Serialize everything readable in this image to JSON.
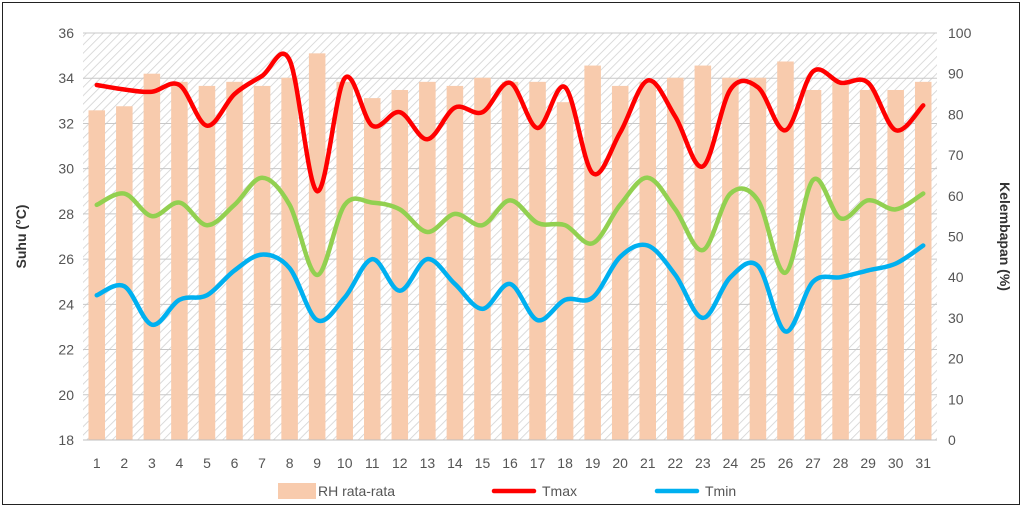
{
  "chart_data": {
    "type": "bar+line",
    "x": [
      1,
      2,
      3,
      4,
      5,
      6,
      7,
      8,
      9,
      10,
      11,
      12,
      13,
      14,
      15,
      16,
      17,
      18,
      19,
      20,
      21,
      22,
      23,
      24,
      25,
      26,
      27,
      28,
      29,
      30,
      31
    ],
    "ylabel_left": "Suhu (°C)",
    "ylabel_right": "Kelembapan (%)",
    "ylim_left": [
      18,
      36
    ],
    "yticks_left": [
      18,
      20,
      22,
      24,
      26,
      28,
      30,
      32,
      34,
      36
    ],
    "ylim_right": [
      0,
      100
    ],
    "yticks_right": [
      0,
      10,
      20,
      30,
      40,
      50,
      60,
      70,
      80,
      90,
      100
    ],
    "bar_series": {
      "name": "RH rata-rata",
      "color": "#f8cbad",
      "axis": "right",
      "values": [
        81,
        82,
        90,
        88,
        87,
        88,
        87,
        89,
        95,
        88,
        84,
        86,
        88,
        87,
        89,
        88,
        88,
        83,
        92,
        87,
        88,
        89,
        92,
        89,
        89,
        93,
        86,
        88,
        86,
        86,
        88
      ]
    },
    "line_series": [
      {
        "name": "Tmax",
        "color": "#ff0000",
        "axis": "left",
        "values": [
          33.7,
          33.5,
          33.4,
          33.7,
          31.9,
          33.3,
          34.1,
          34.8,
          29.0,
          34.0,
          31.9,
          32.5,
          31.3,
          32.7,
          32.5,
          33.8,
          31.8,
          33.6,
          29.8,
          31.6,
          33.9,
          32.3,
          30.1,
          33.5,
          33.6,
          31.7,
          34.3,
          33.8,
          33.8,
          31.7,
          32.8
        ]
      },
      {
        "name": "",
        "color": "#92d050",
        "axis": "left",
        "values": [
          28.4,
          28.9,
          27.9,
          28.5,
          27.5,
          28.4,
          29.6,
          28.4,
          25.3,
          28.4,
          28.5,
          28.2,
          27.2,
          28.0,
          27.5,
          28.6,
          27.6,
          27.5,
          26.7,
          28.4,
          29.6,
          28.2,
          26.4,
          28.9,
          28.6,
          25.4,
          29.5,
          27.8,
          28.6,
          28.2,
          28.9
        ]
      },
      {
        "name": "Tmin",
        "color": "#00b0f0",
        "axis": "left",
        "values": [
          24.4,
          24.8,
          23.1,
          24.2,
          24.4,
          25.5,
          26.2,
          25.6,
          23.3,
          24.3,
          26.0,
          24.6,
          26.0,
          24.9,
          23.8,
          24.9,
          23.3,
          24.2,
          24.3,
          26.1,
          26.6,
          25.3,
          23.4,
          25.2,
          25.7,
          22.8,
          25.0,
          25.2,
          25.5,
          25.8,
          26.6
        ]
      }
    ],
    "grid": "horizontal",
    "legend_position": "bottom",
    "legend": [
      {
        "label": "RH rata-rata",
        "kind": "box",
        "color": "#f8cbad"
      },
      {
        "label": "Tmax",
        "kind": "line",
        "color": "#ff0000"
      },
      {
        "label": "Tmin",
        "kind": "line",
        "color": "#00b0f0"
      }
    ]
  }
}
